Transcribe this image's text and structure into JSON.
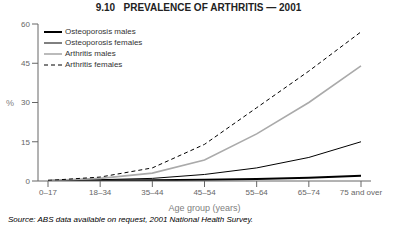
{
  "chart_data": {
    "type": "line",
    "title": "9.10   PREVALENCE OF ARTHRITIS — 2001",
    "xlabel": "Age group (years)",
    "ylabel": "%",
    "source": "Source: ABS data available on request, 2001 National Health Survey.",
    "categories": [
      "0–17",
      "18–34",
      "35–44",
      "45–54",
      "55–64",
      "65–74",
      "75 and over"
    ],
    "series": [
      {
        "name": "Osteoporosis males",
        "color": "#000000",
        "line_style": "solid",
        "values": [
          0.1,
          0.2,
          0.3,
          0.5,
          0.8,
          1.2,
          2.0
        ]
      },
      {
        "name": "Osteoporosis females",
        "color": "#000000",
        "line_style": "solid",
        "values": [
          0.1,
          0.5,
          1.0,
          2.5,
          5.0,
          9.0,
          15.0
        ]
      },
      {
        "name": "Arthritis males",
        "color": "#aaaaaa",
        "line_style": "solid",
        "values": [
          0.2,
          1.0,
          3.0,
          8.0,
          18.0,
          30.0,
          44.0
        ]
      },
      {
        "name": "Arthritis females",
        "color": "#000000",
        "line_style": "dashed",
        "values": [
          0.2,
          1.5,
          5.0,
          14.0,
          28.0,
          42.0,
          57.0
        ]
      }
    ],
    "ylim": [
      0,
      60
    ],
    "yticks": [
      0,
      15,
      30,
      45,
      60
    ],
    "grid": false,
    "legend": "upper left"
  }
}
